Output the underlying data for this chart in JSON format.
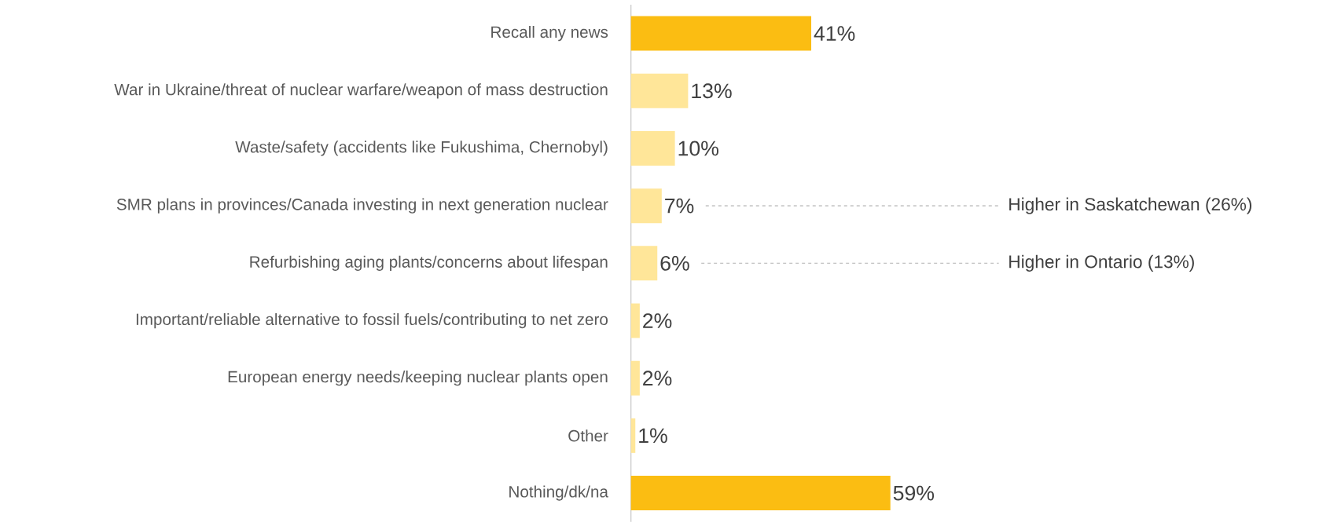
{
  "chart_data": {
    "type": "bar",
    "orientation": "horizontal",
    "categories": [
      "Recall any news",
      "War in Ukraine/threat of nuclear warfare/weapon of mass destruction",
      "Waste/safety (accidents like Fukushima, Chernobyl)",
      "SMR plans in provinces/Canada investing in next generation nuclear",
      "Refurbishing aging plants/concerns about lifespan",
      "Important/reliable alternative to fossil fuels/contributing to net zero",
      "European energy needs/keeping nuclear plants open",
      "Other",
      "Nothing/dk/na"
    ],
    "values": [
      41,
      13,
      10,
      7,
      6,
      2,
      2,
      1,
      59
    ],
    "value_labels": [
      "41%",
      "13%",
      "10%",
      "7%",
      "6%",
      "2%",
      "2%",
      "1%",
      "59%"
    ],
    "colors": [
      "#fbbd12",
      "#ffe699",
      "#ffe699",
      "#ffe699",
      "#ffe699",
      "#ffe699",
      "#ffe699",
      "#ffe699",
      "#fbbd12"
    ],
    "annotations": [
      "Higher in Saskatchewan (26%)",
      "Higher in Ontario (13%)"
    ]
  }
}
